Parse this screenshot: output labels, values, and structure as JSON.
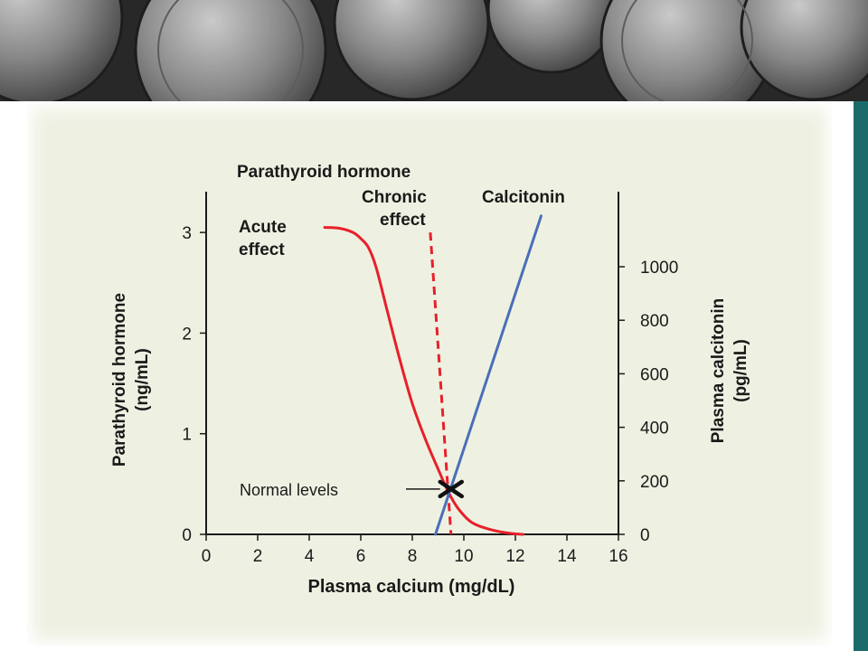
{
  "chart_data": {
    "type": "line",
    "title": "Parathyroid hormone",
    "xlabel": "Plasma calcium (mg/dL)",
    "ylabel_left": [
      "Parathyroid hormone",
      "(ng/mL)"
    ],
    "ylabel_right": [
      "Plasma calcitonin",
      "(pg/mL)"
    ],
    "xlim": [
      0,
      16
    ],
    "ylim_left": [
      0,
      3
    ],
    "ylim_right": [
      0,
      1000
    ],
    "x_ticks": [
      0,
      2,
      4,
      6,
      8,
      10,
      12,
      14,
      16
    ],
    "y_left_ticks": [
      0,
      1,
      2,
      3
    ],
    "y_right_ticks": [
      0,
      200,
      400,
      600,
      800,
      1000
    ],
    "colors": {
      "acute": "#e8202a",
      "chronic": "#e8202a",
      "calcitonin": "#4a6fb8",
      "marker": "#111111"
    },
    "series": [
      {
        "name": "Acute effect",
        "name_lines": [
          "Acute",
          "effect"
        ],
        "axis": "left",
        "style": "solid",
        "x": [
          4.6,
          5.2,
          5.7,
          6.0,
          6.3,
          6.6,
          7.0,
          7.5,
          8.0,
          8.5,
          9.0,
          9.4,
          9.8,
          10.3,
          11.0,
          11.8,
          12.3
        ],
        "y": [
          3.05,
          3.04,
          3.0,
          2.94,
          2.85,
          2.65,
          2.25,
          1.75,
          1.3,
          0.95,
          0.65,
          0.42,
          0.25,
          0.12,
          0.05,
          0.01,
          0.0
        ]
      },
      {
        "name": "Chronic effect",
        "name_lines": [
          "Chronic",
          "effect"
        ],
        "axis": "left",
        "style": "dashed",
        "x": [
          8.7,
          9.5
        ],
        "y": [
          3.0,
          0.0
        ]
      },
      {
        "name": "Calcitonin",
        "axis": "right",
        "style": "solid",
        "x": [
          8.9,
          13.0
        ],
        "y": [
          0,
          1190
        ]
      }
    ],
    "annotations": [
      {
        "text": "Normal levels",
        "x": 9.5,
        "y_left": 0.45
      }
    ]
  }
}
